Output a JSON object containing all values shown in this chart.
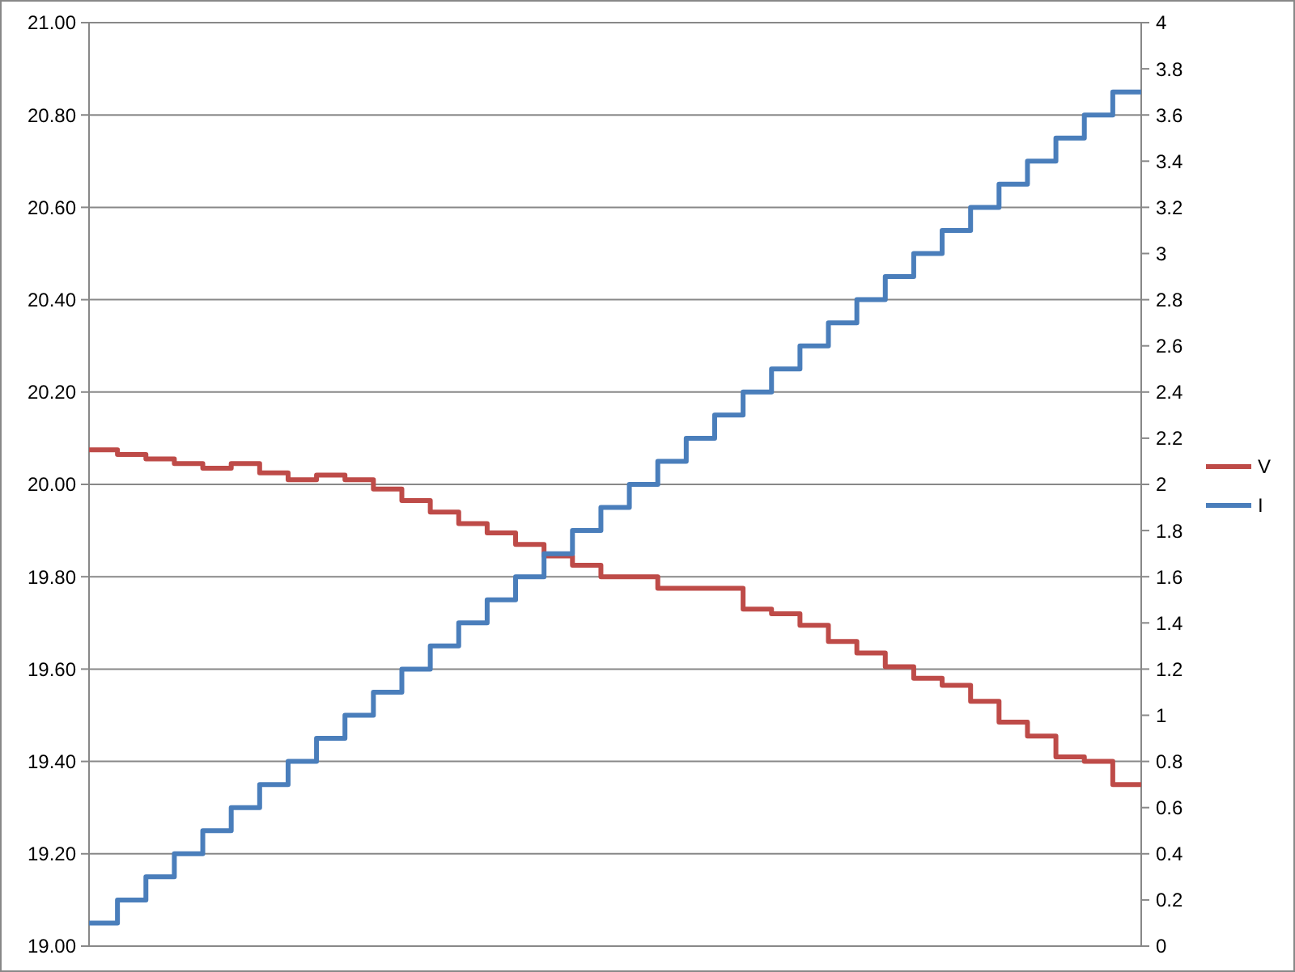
{
  "chart_data": {
    "type": "step",
    "categories": [
      null,
      null,
      null,
      null,
      null,
      null,
      null,
      null,
      null,
      null,
      null,
      null,
      null,
      null,
      null,
      null,
      null,
      null,
      null,
      null,
      null,
      null,
      null,
      null,
      null,
      null,
      null,
      null,
      null,
      null,
      null,
      null,
      null,
      null,
      null,
      null,
      null,
      null
    ],
    "series": [
      {
        "name": "V",
        "color": "#be4b48",
        "values": [
          20.075,
          20.065,
          20.055,
          20.045,
          20.035,
          20.045,
          20.025,
          20.01,
          20.02,
          20.01,
          19.99,
          19.965,
          19.94,
          19.915,
          19.895,
          19.87,
          19.845,
          19.825,
          19.8,
          19.8,
          19.775,
          19.775,
          19.775,
          19.73,
          19.72,
          19.695,
          19.66,
          19.635,
          19.605,
          19.58,
          19.565,
          19.53,
          19.485,
          19.455,
          19.41,
          19.4,
          19.35,
          19.35
        ]
      },
      {
        "name": "I",
        "color": "#4a7ebb",
        "axis": "y2",
        "values": [
          0.1,
          0.2,
          0.3,
          0.4,
          0.5,
          0.6,
          0.7,
          0.8,
          0.9,
          1.0,
          1.1,
          1.2,
          1.3,
          1.4,
          1.5,
          1.6,
          1.7,
          1.8,
          1.9,
          2.0,
          2.1,
          2.2,
          2.3,
          2.4,
          2.5,
          2.6,
          2.7,
          2.8,
          2.9,
          3.0,
          3.1,
          3.2,
          3.3,
          3.4,
          3.5,
          3.6,
          3.7,
          3.7
        ]
      }
    ],
    "ylim": [
      19,
      21
    ],
    "yticks": [
      {
        "value": 19,
        "label": "19.00"
      },
      {
        "value": 19.2,
        "label": "19.20"
      },
      {
        "value": 19.4,
        "label": "19.40"
      },
      {
        "value": 19.6,
        "label": "19.60"
      },
      {
        "value": 19.8,
        "label": "19.80"
      },
      {
        "value": 20,
        "label": "20.00"
      },
      {
        "value": 20.2,
        "label": "20.20"
      },
      {
        "value": 20.4,
        "label": "20.40"
      },
      {
        "value": 20.6,
        "label": "20.60"
      },
      {
        "value": 20.8,
        "label": "20.80"
      },
      {
        "value": 21,
        "label": "21.00"
      }
    ],
    "y2lim": [
      0,
      4
    ],
    "y2ticks": [
      0,
      0.2,
      0.4,
      0.6,
      0.8,
      1,
      1.2,
      1.4,
      1.6,
      1.8,
      2,
      2.2,
      2.4,
      2.6,
      2.8,
      3,
      3.2,
      3.4,
      3.6,
      3.8,
      4
    ],
    "grid": "y",
    "legend": "right",
    "line_style": "solid",
    "marker": "none"
  }
}
